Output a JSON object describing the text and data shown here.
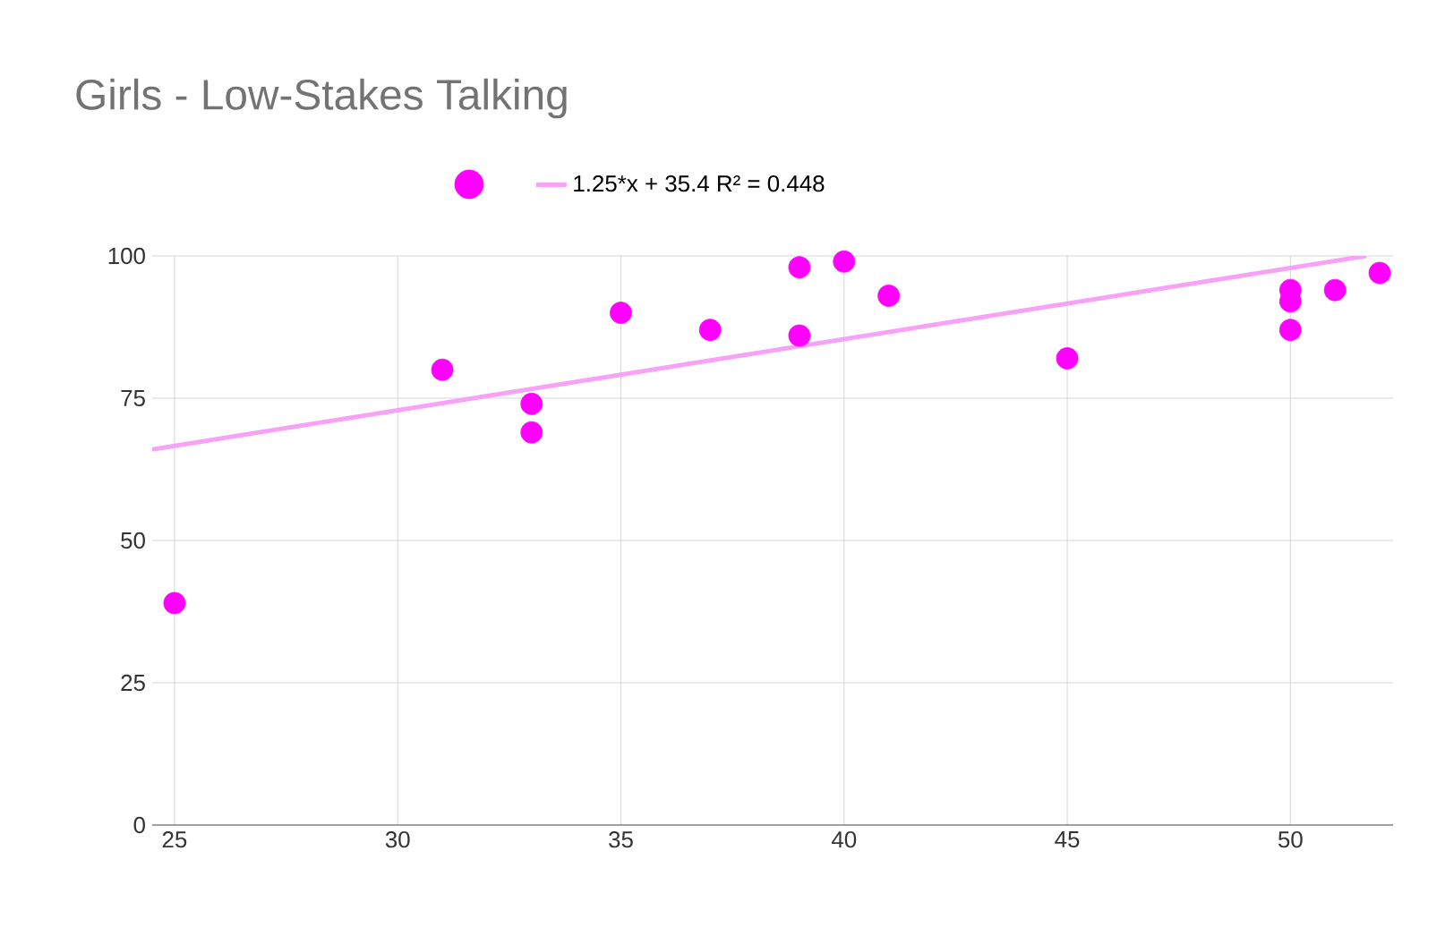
{
  "chart_data": {
    "type": "scatter",
    "title": "Girls - Low-Stakes Talking",
    "xlim": [
      24.5,
      52.3
    ],
    "ylim": [
      0,
      100
    ],
    "xticks": [
      25,
      30,
      35,
      40,
      45,
      50
    ],
    "yticks": [
      0,
      25,
      50,
      75,
      100
    ],
    "grid": true,
    "legend": "top",
    "series": [
      {
        "color": "#ff00ff",
        "marker": "circle",
        "x": [
          25,
          31,
          33,
          33,
          35,
          37,
          39,
          39,
          40,
          41,
          45,
          50,
          50,
          50,
          51,
          52
        ],
        "values": [
          39,
          80,
          74,
          69,
          90,
          87,
          98,
          86,
          99,
          93,
          82,
          94,
          92,
          87,
          94,
          97
        ]
      },
      {
        "type": "line",
        "name": "1.25*x + 35.4 R² = 0.448",
        "color": "#f7a1f7",
        "x": [
          24.5,
          51.7
        ],
        "values": [
          66.0,
          100.0
        ]
      }
    ]
  }
}
